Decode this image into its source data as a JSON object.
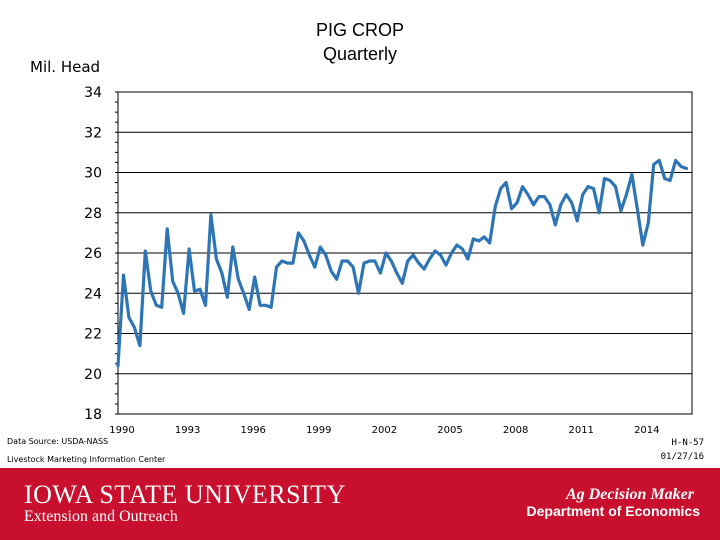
{
  "chart_data": {
    "type": "line",
    "title": "PIG CROP",
    "subtitle": "Quarterly",
    "ylabel": "Mil. Head",
    "xlabel": "",
    "ylim": [
      18,
      34
    ],
    "xlim": [
      1990,
      2016.25
    ],
    "yticks": [
      18,
      20,
      22,
      24,
      26,
      28,
      30,
      32,
      34
    ],
    "xticks": [
      1990,
      1993,
      1996,
      1999,
      2002,
      2005,
      2008,
      2011,
      2014
    ],
    "grid": "horizontal",
    "series": [
      {
        "name": "Pig Crop",
        "color": "#2e75b6",
        "x": [
          1990,
          1990.25,
          1990.5,
          1990.75,
          1991,
          1991.25,
          1991.5,
          1991.75,
          1992,
          1992.25,
          1992.5,
          1992.75,
          1993,
          1993.25,
          1993.5,
          1993.75,
          1994,
          1994.25,
          1994.5,
          1994.75,
          1995,
          1995.25,
          1995.5,
          1995.75,
          1996,
          1996.25,
          1996.5,
          1996.75,
          1997,
          1997.25,
          1997.5,
          1997.75,
          1998,
          1998.25,
          1998.5,
          1998.75,
          1999,
          1999.25,
          1999.5,
          1999.75,
          2000,
          2000.25,
          2000.5,
          2000.75,
          2001,
          2001.25,
          2001.5,
          2001.75,
          2002,
          2002.25,
          2002.5,
          2002.75,
          2003,
          2003.25,
          2003.5,
          2003.75,
          2004,
          2004.25,
          2004.5,
          2004.75,
          2005,
          2005.25,
          2005.5,
          2005.75,
          2006,
          2006.25,
          2006.5,
          2006.75,
          2007,
          2007.25,
          2007.5,
          2007.75,
          2008,
          2008.25,
          2008.5,
          2008.75,
          2009,
          2009.25,
          2009.5,
          2009.75,
          2010,
          2010.25,
          2010.5,
          2010.75,
          2011,
          2011.25,
          2011.5,
          2011.75,
          2012,
          2012.25,
          2012.5,
          2012.75,
          2013,
          2013.25,
          2013.5,
          2013.75,
          2014,
          2014.25,
          2014.5,
          2014.75,
          2015,
          2015.25,
          2015.5,
          2015.75,
          2016
        ],
        "values": [
          20.4,
          24.9,
          22.8,
          22.3,
          21.4,
          26.1,
          24.1,
          23.4,
          23.3,
          27.2,
          24.6,
          24.0,
          23.0,
          26.2,
          24.1,
          24.2,
          23.4,
          27.9,
          25.7,
          25.0,
          23.8,
          26.3,
          24.7,
          24.0,
          23.2,
          24.8,
          23.4,
          23.4,
          23.3,
          25.3,
          25.6,
          25.5,
          25.5,
          27.0,
          26.6,
          25.9,
          25.3,
          26.3,
          25.9,
          25.1,
          24.7,
          25.6,
          25.6,
          25.3,
          24.0,
          25.5,
          25.6,
          25.6,
          25.0,
          26.0,
          25.6,
          25.0,
          24.5,
          25.6,
          25.9,
          25.5,
          25.2,
          25.7,
          26.1,
          25.9,
          25.4,
          26.0,
          26.4,
          26.2,
          25.7,
          26.7,
          26.6,
          26.8,
          26.5,
          28.3,
          29.2,
          29.5,
          28.2,
          28.5,
          29.3,
          28.9,
          28.4,
          28.8,
          28.8,
          28.4,
          27.4,
          28.4,
          28.9,
          28.5,
          27.6,
          28.9,
          29.3,
          29.2,
          28.0,
          29.7,
          29.6,
          29.3,
          28.1,
          28.9,
          29.9,
          28.2,
          26.4,
          27.5,
          30.4,
          30.6,
          29.7,
          29.6,
          30.6,
          30.3,
          30.2
        ]
      }
    ]
  },
  "notes": {
    "source": "Data Source: USDA-NASS",
    "lmic": "Livestock Marketing Information Center",
    "code": "H-N-57",
    "date": "01/27/16"
  },
  "footer": {
    "university": "IOWA STATE UNIVERSITY",
    "extension": "Extension and Outreach",
    "adm_line1": "Ag Decision Maker",
    "adm_line2": "Department of Economics"
  },
  "colors": {
    "line": "#2e75b6",
    "footer_bg": "#c8102e"
  }
}
